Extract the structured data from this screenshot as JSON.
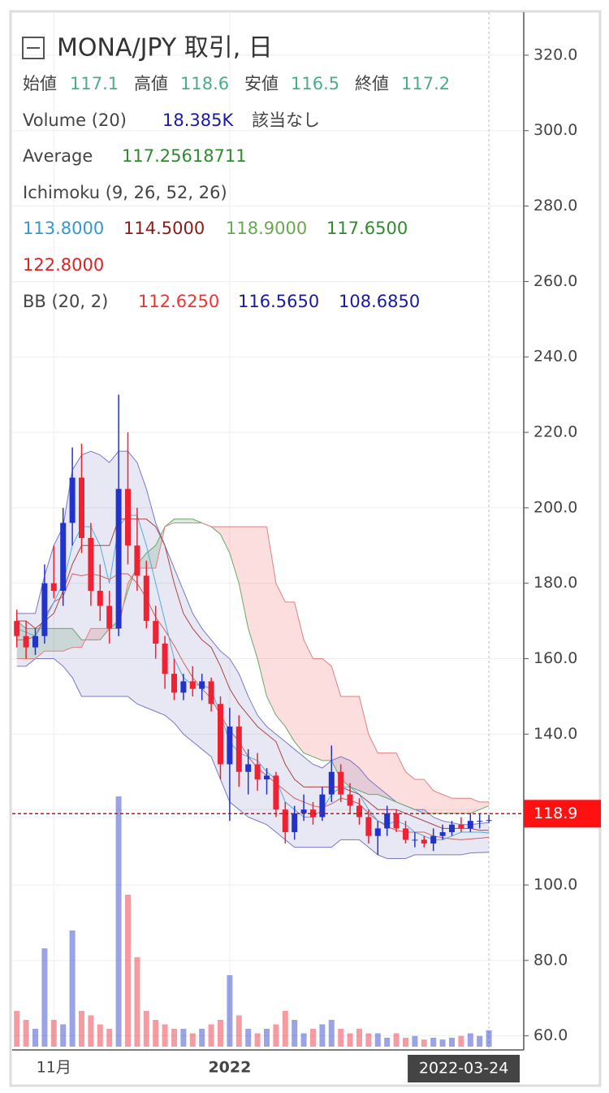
{
  "chart_data": {
    "type": "candlestick",
    "header": {
      "title": "MONA/JPY 取引, 日",
      "ohlc": [
        {
          "label": "始値",
          "value": 117.1
        },
        {
          "label": "高値",
          "value": 118.6
        },
        {
          "label": "安値",
          "value": 116.5
        },
        {
          "label": "終値",
          "value": 117.2
        }
      ],
      "volume": {
        "label": "Volume (20)",
        "value": "18.385K",
        "note": "該当なし"
      },
      "average": {
        "label": "Average",
        "value": "117.25618711"
      },
      "ichimoku": {
        "label": "Ichimoku (9, 26, 52, 26)",
        "values": [
          "113.8000",
          "114.5000",
          "118.9000",
          "117.6500",
          "122.8000"
        ]
      },
      "bb": {
        "label": "BB (20, 2)",
        "values": [
          "112.6250",
          "116.5650",
          "108.6850"
        ]
      }
    },
    "categories": [
      null,
      null,
      null,
      null,
      "11月",
      null,
      null,
      null,
      null,
      null,
      null,
      null,
      null,
      null,
      null,
      null,
      null,
      null,
      null,
      null,
      null,
      null,
      null,
      "2022",
      null,
      null,
      null,
      null,
      null,
      null,
      null,
      null,
      null,
      null,
      null,
      null,
      null,
      null,
      null,
      null,
      null,
      null,
      null,
      null,
      null,
      null,
      null,
      null,
      null,
      null,
      null,
      "2022-03-24"
    ],
    "ohlc": [
      [
        170,
        173,
        163,
        166
      ],
      [
        166,
        170,
        160,
        163
      ],
      [
        163,
        168,
        161,
        166
      ],
      [
        166,
        185,
        164,
        180
      ],
      [
        180,
        190,
        176,
        178
      ],
      [
        178,
        200,
        174,
        196
      ],
      [
        196,
        216,
        190,
        208
      ],
      [
        208,
        217,
        188,
        192
      ],
      [
        192,
        196,
        174,
        178
      ],
      [
        178,
        185,
        170,
        174
      ],
      [
        174,
        178,
        164,
        168
      ],
      [
        168,
        230,
        166,
        205
      ],
      [
        205,
        220,
        185,
        190
      ],
      [
        190,
        200,
        178,
        182
      ],
      [
        182,
        186,
        168,
        170
      ],
      [
        170,
        174,
        160,
        164
      ],
      [
        164,
        166,
        152,
        156
      ],
      [
        156,
        160,
        149,
        151
      ],
      [
        151,
        156,
        149,
        154
      ],
      [
        154,
        158,
        150,
        152
      ],
      [
        152,
        156,
        149,
        154
      ],
      [
        154,
        155,
        146,
        148
      ],
      [
        148,
        150,
        128,
        132
      ],
      [
        132,
        147,
        117,
        142
      ],
      [
        142,
        145,
        126,
        130
      ],
      [
        130,
        136,
        124,
        132
      ],
      [
        132,
        135,
        125,
        128
      ],
      [
        128,
        131,
        124,
        129
      ],
      [
        129,
        130,
        118,
        120
      ],
      [
        120,
        122,
        111,
        114
      ],
      [
        114,
        121,
        112,
        119
      ],
      [
        119,
        124,
        117,
        120
      ],
      [
        120,
        122,
        116,
        118
      ],
      [
        118,
        126,
        117,
        124
      ],
      [
        124,
        137,
        122,
        130
      ],
      [
        130,
        132,
        122,
        124
      ],
      [
        124,
        127,
        119,
        121
      ],
      [
        121,
        123,
        116,
        118
      ],
      [
        118,
        120,
        111,
        113
      ],
      [
        113,
        117,
        108,
        115
      ],
      [
        115,
        121,
        113,
        119
      ],
      [
        119,
        120,
        114,
        115
      ],
      [
        115,
        117,
        111,
        112
      ],
      [
        112,
        114,
        110,
        112
      ],
      [
        112,
        113,
        110,
        111
      ],
      [
        111,
        115,
        109,
        113
      ],
      [
        113,
        116,
        112,
        114
      ],
      [
        114,
        117,
        113,
        116
      ],
      [
        116,
        118,
        114,
        115
      ],
      [
        115,
        119,
        114,
        117
      ],
      [
        117,
        119,
        115,
        117
      ],
      [
        117.1,
        118.6,
        116.5,
        117.2
      ]
    ],
    "volume": [
      40,
      30,
      20,
      110,
      30,
      25,
      130,
      40,
      35,
      25,
      20,
      280,
      170,
      100,
      40,
      30,
      25,
      20,
      20,
      15,
      20,
      25,
      30,
      80,
      35,
      20,
      15,
      20,
      25,
      40,
      30,
      15,
      20,
      25,
      30,
      20,
      15,
      20,
      15,
      15,
      10,
      15,
      10,
      12,
      8,
      10,
      8,
      10,
      12,
      15,
      12,
      18.385
    ],
    "volume_ylim": [
      0,
      300
    ],
    "bb_upper": [
      172,
      172,
      172,
      182,
      190,
      195,
      210,
      214,
      215,
      214,
      212,
      215,
      215,
      212,
      205,
      196,
      190,
      184,
      178,
      172,
      168,
      165,
      162,
      160,
      156,
      150,
      145,
      142,
      140,
      138,
      136,
      134,
      132,
      131,
      133,
      134,
      133,
      131,
      128,
      126,
      124,
      122,
      121,
      120,
      120,
      118,
      117,
      116.5,
      116,
      116,
      116.3,
      116.565
    ],
    "bb_middle": [
      165,
      165,
      166,
      171,
      175,
      176.5,
      182.5,
      182,
      182.5,
      182,
      181,
      182.5,
      182.5,
      180,
      176,
      171,
      167.5,
      163.5,
      159,
      155,
      152,
      149.5,
      145,
      141,
      138,
      134,
      131,
      129,
      127,
      125,
      123,
      122,
      121,
      120.5,
      121.5,
      123,
      122.5,
      121.5,
      119,
      117,
      115.5,
      114.5,
      114,
      114,
      114,
      113,
      112.5,
      112.2,
      112,
      112.2,
      112.4,
      112.625
    ],
    "bb_lower": [
      158,
      158,
      160,
      160,
      160,
      158,
      155,
      150,
      150,
      150,
      150,
      150,
      150,
      148,
      147,
      146,
      145,
      143,
      140,
      138,
      136,
      134,
      128,
      122,
      120,
      118,
      117,
      116,
      114,
      112,
      110,
      110,
      110,
      110,
      110,
      112,
      112,
      112,
      110,
      108,
      107,
      107,
      107,
      108,
      108,
      108,
      108,
      108,
      108,
      108.5,
      108.6,
      108.685
    ],
    "span_a": [
      170,
      168,
      168,
      168,
      168,
      168,
      168,
      165,
      165,
      165,
      168,
      170,
      178,
      185,
      188,
      190,
      195,
      197,
      197,
      197,
      196,
      195,
      193,
      188,
      180,
      168,
      160,
      150,
      145,
      142,
      138,
      135,
      134,
      133,
      133,
      128,
      126,
      125,
      124,
      124,
      123,
      122,
      121,
      120,
      119,
      119,
      119,
      119,
      119,
      119,
      120,
      121
    ],
    "span_b": [
      160,
      160,
      160,
      162,
      162,
      162,
      163,
      163,
      168,
      168,
      168,
      168,
      180,
      184,
      184,
      184,
      195,
      196,
      196,
      196,
      196,
      195,
      195,
      195,
      195,
      195,
      195,
      195,
      180,
      175,
      175,
      165,
      160,
      160,
      158,
      150,
      150,
      150,
      140,
      135,
      135,
      135,
      130,
      128,
      128,
      125,
      124,
      123,
      123,
      123,
      122,
      122
    ],
    "tenkan": [
      168,
      167,
      166,
      170,
      175,
      180,
      190,
      195,
      195,
      190,
      180,
      195,
      198,
      198,
      190,
      180,
      170,
      160,
      155,
      153,
      153,
      152,
      145,
      138,
      135,
      134,
      133,
      130,
      128,
      122,
      120,
      118,
      118,
      120,
      124,
      126,
      126,
      124,
      120,
      117,
      116,
      117,
      116,
      114,
      113,
      112,
      112,
      113,
      114,
      114,
      114,
      113.8
    ],
    "kijun": [
      170,
      170,
      168,
      170,
      172,
      178,
      185,
      190,
      190,
      190,
      190,
      197,
      197,
      197,
      197,
      195,
      190,
      180,
      172,
      168,
      165,
      163,
      158,
      152,
      148,
      145,
      142,
      140,
      138,
      132,
      128,
      126,
      126,
      126,
      126,
      126,
      125,
      124,
      122,
      120,
      120,
      120,
      119,
      118,
      117,
      116,
      115,
      115,
      115,
      115,
      114.5,
      114.5
    ],
    "up_color": "#2233cc",
    "down_color": "#ee2233",
    "last_price": 118.9,
    "ylim": [
      56.7,
      331.4
    ],
    "yticks": [
      {
        "value": 60,
        "label": "60.0"
      },
      {
        "value": 80,
        "label": "80.0"
      },
      {
        "value": 100,
        "label": "100.0"
      },
      {
        "value": 120,
        "label": "120.0"
      },
      {
        "value": 140,
        "label": "140.0"
      },
      {
        "value": 160,
        "label": "160.0"
      },
      {
        "value": 180,
        "label": "180.0"
      },
      {
        "value": 200,
        "label": "200.0"
      },
      {
        "value": 220,
        "label": "220.0"
      },
      {
        "value": 240,
        "label": "240.0"
      },
      {
        "value": 260,
        "label": "260.0"
      },
      {
        "value": 280,
        "label": "280.0"
      },
      {
        "value": 300,
        "label": "300.0"
      },
      {
        "value": 320,
        "label": "320.0"
      }
    ],
    "grid": true
  }
}
